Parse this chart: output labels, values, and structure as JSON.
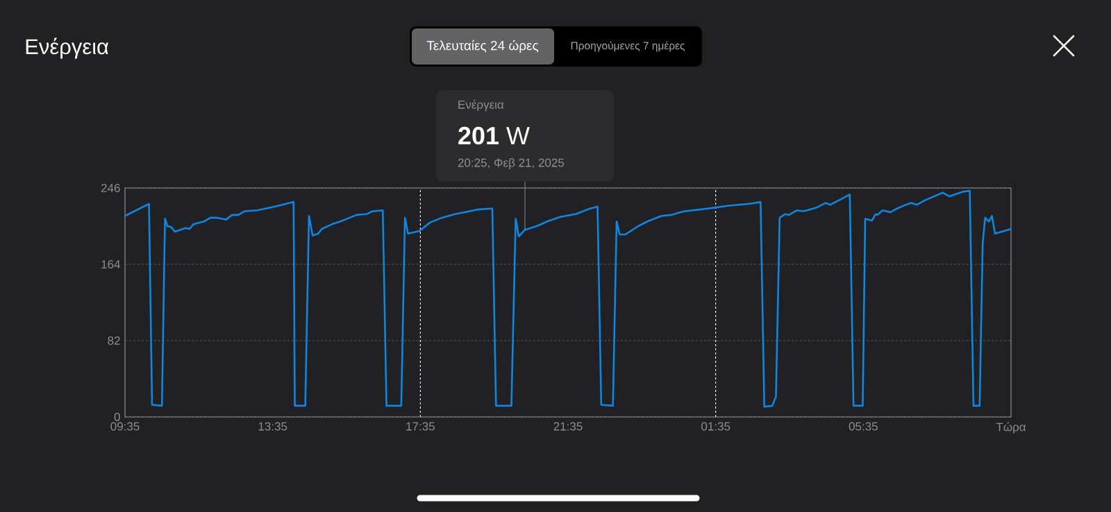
{
  "chart_data": {
    "type": "line",
    "title": "Ενέργεια",
    "annotations": [
      "Τελευταίες 24 ώρες",
      "Προηγούμενες 7 ημέρες",
      "Ενέργεια",
      "**201** W",
      {
        "text": "20:25, Φεβ 21, 2025",
        "x": "2025-02-21T20:25",
        "y": 201
      }
    ],
    "x": [
      "2025-02-21T09:35",
      "2025-02-21T09:59",
      "2025-02-21T10:14",
      "2025-02-21T10:19",
      "2025-02-21T10:35",
      "2025-02-21T10:40",
      "2025-02-21T10:44",
      "2025-02-21T10:50",
      "2025-02-21T10:56",
      "2025-02-21T11:13",
      "2025-02-21T11:20",
      "2025-02-21T11:26",
      "2025-02-21T11:43",
      "2025-02-21T11:54",
      "2025-02-21T12:05",
      "2025-02-21T12:19",
      "2025-02-21T12:29",
      "2025-02-21T12:39",
      "2025-02-21T12:49",
      "2025-02-21T13:09",
      "2025-02-21T13:39",
      "2025-02-21T14:09",
      "2025-02-21T14:11",
      "2025-02-21T14:28",
      "2025-02-21T14:34",
      "2025-02-21T14:40",
      "2025-02-21T14:49",
      "2025-02-21T14:55",
      "2025-02-21T15:11",
      "2025-02-21T15:25",
      "2025-02-21T15:40",
      "2025-02-21T15:51",
      "2025-02-21T16:08",
      "2025-02-21T16:17",
      "2025-02-21T16:34",
      "2025-02-21T16:40",
      "2025-02-21T17:04",
      "2025-02-21T17:10",
      "2025-02-21T17:15",
      "2025-02-21T17:34",
      "2025-02-21T17:51",
      "2025-02-21T18:10",
      "2025-02-21T18:32",
      "2025-02-21T18:55",
      "2025-02-21T19:10",
      "2025-02-21T19:32",
      "2025-02-21T19:38",
      "2025-02-21T20:03",
      "2025-02-21T20:10",
      "2025-02-21T20:15",
      "2025-02-21T20:25",
      "2025-02-21T20:44",
      "2025-02-21T21:01",
      "2025-02-21T21:23",
      "2025-02-21T21:48",
      "2025-02-21T22:07",
      "2025-02-21T22:23",
      "2025-02-21T22:29",
      "2025-02-21T22:48",
      "2025-02-21T22:54",
      "2025-02-21T22:59",
      "2025-02-21T23:08",
      "2025-02-21T23:29",
      "2025-02-21T23:44",
      "2025-02-22T00:07",
      "2025-02-22T00:22",
      "2025-02-22T00:44",
      "2025-02-22T01:11",
      "2025-02-22T01:34",
      "2025-02-22T01:56",
      "2025-02-22T02:30",
      "2025-02-22T02:48",
      "2025-02-22T02:54",
      "2025-02-22T03:07",
      "2025-02-22T03:13",
      "2025-02-22T03:19",
      "2025-02-22T03:28",
      "2025-02-22T03:34",
      "2025-02-22T03:47",
      "2025-02-22T03:58",
      "2025-02-22T04:19",
      "2025-02-22T04:34",
      "2025-02-22T04:41",
      "2025-02-22T04:56",
      "2025-02-22T05:13",
      "2025-02-22T05:19",
      "2025-02-22T05:34",
      "2025-02-22T05:38",
      "2025-02-22T05:49",
      "2025-02-22T05:55",
      "2025-02-22T05:58",
      "2025-02-22T06:06",
      "2025-02-22T06:19",
      "2025-02-22T06:30",
      "2025-02-22T06:44",
      "2025-02-22T06:53",
      "2025-02-22T07:02",
      "2025-02-22T07:16",
      "2025-02-22T07:44",
      "2025-02-22T07:55",
      "2025-02-22T08:17",
      "2025-02-22T08:28",
      "2025-02-22T08:34",
      "2025-02-22T08:44",
      "2025-02-22T08:49",
      "2025-02-22T08:53",
      "2025-02-22T08:59",
      "2025-02-22T09:04",
      "2025-02-22T09:09",
      "2025-02-22T09:20",
      "2025-02-22T09:35"
    ],
    "series": [
      {
        "color": "#0a88e8",
        "values": [
          216,
          224,
          229,
          13,
          12,
          213,
          205,
          204,
          199,
          203,
          202,
          207,
          210,
          214,
          214,
          212,
          217,
          217,
          221,
          222,
          226,
          231,
          12,
          12,
          216,
          195,
          197,
          202,
          207,
          210,
          214,
          217,
          218,
          221,
          222,
          12,
          12,
          214,
          197,
          200,
          209,
          214,
          218,
          221,
          223,
          224,
          12,
          12,
          213,
          194,
          201,
          205,
          210,
          215,
          218,
          223,
          226,
          13,
          12,
          210,
          196,
          196,
          205,
          210,
          216,
          217,
          221,
          223,
          225,
          227,
          229,
          231,
          11,
          12,
          22,
          214,
          218,
          217,
          222,
          221,
          225,
          230,
          228,
          233,
          239,
          12,
          12,
          213,
          211,
          218,
          217,
          222,
          220,
          224,
          228,
          230,
          228,
          233,
          241,
          237,
          242,
          243,
          12,
          12,
          187,
          214,
          210,
          216,
          197,
          199,
          202
        ]
      }
    ],
    "xlim": [
      "2025-02-21T09:35",
      "2025-02-22T09:35"
    ],
    "ylim": [
      0,
      246
    ],
    "xticks": [
      {
        "value": "2025-02-21T09:35",
        "label": "09:35"
      },
      {
        "value": "2025-02-21T13:35",
        "label": "13:35"
      },
      {
        "value": "2025-02-21T17:35",
        "label": "17:35"
      },
      {
        "value": "2025-02-21T21:35",
        "label": "21:35"
      },
      {
        "value": "2025-02-22T01:35",
        "label": "01:35"
      },
      {
        "value": "2025-02-22T05:35",
        "label": "05:35"
      },
      {
        "value": "2025-02-22T09:35",
        "label": "Τώρα"
      }
    ],
    "yticks": [
      0,
      82,
      164,
      246
    ],
    "grid": "y",
    "line_style": "solid",
    "ref_lines": [
      {
        "axis": "x",
        "value": "2025-02-21T17:35",
        "color": "#ffffff",
        "line_style": "dashed"
      },
      {
        "axis": "x",
        "value": "2025-02-22T01:35",
        "color": "#ffffff",
        "line_style": "dashed"
      }
    ]
  }
}
